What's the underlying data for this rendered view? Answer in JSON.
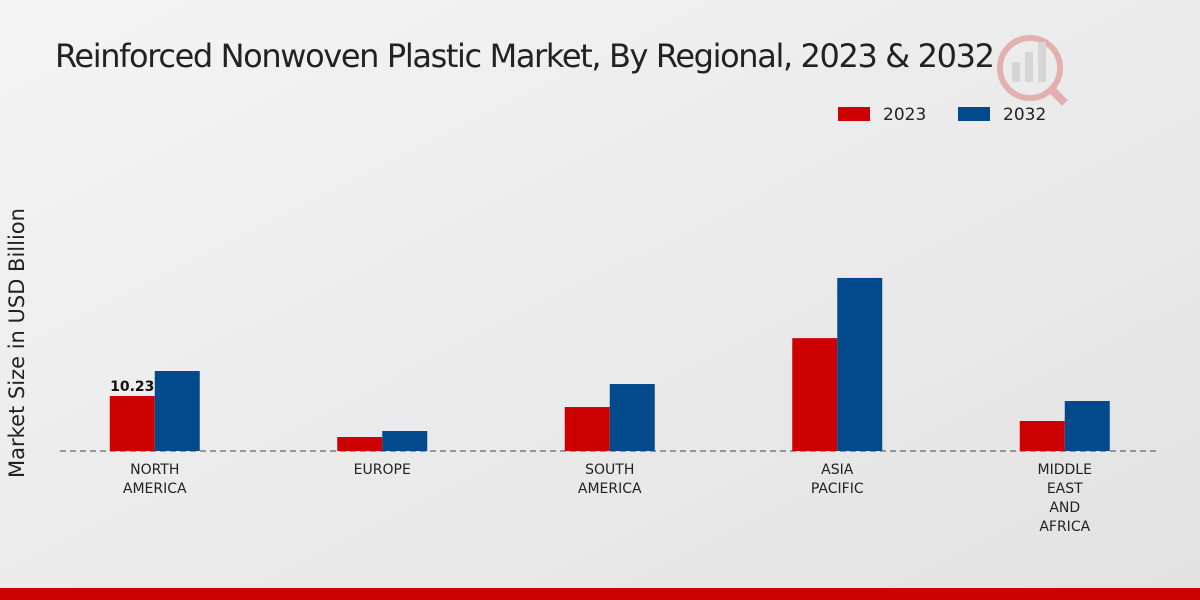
{
  "chart_data": {
    "type": "bar",
    "title": "Reinforced Nonwoven Plastic Market, By Regional, 2023 & 2032",
    "y_label": "Market Size in USD Billion",
    "categories": [
      "NORTH AMERICA",
      "EUROPE",
      "SOUTH AMERICA",
      "ASIA PACIFIC",
      "MIDDLE EAST AND AFRICA"
    ],
    "series": [
      {
        "name": "2023",
        "color": "#cc0000",
        "values": [
          10.23,
          2.6,
          8.18,
          21.0,
          5.58
        ]
      },
      {
        "name": "2032",
        "color": "#034a8c",
        "values": [
          14.88,
          3.72,
          12.46,
          32.2,
          9.3
        ]
      }
    ],
    "ylim": [
      0,
      40
    ]
  }
}
